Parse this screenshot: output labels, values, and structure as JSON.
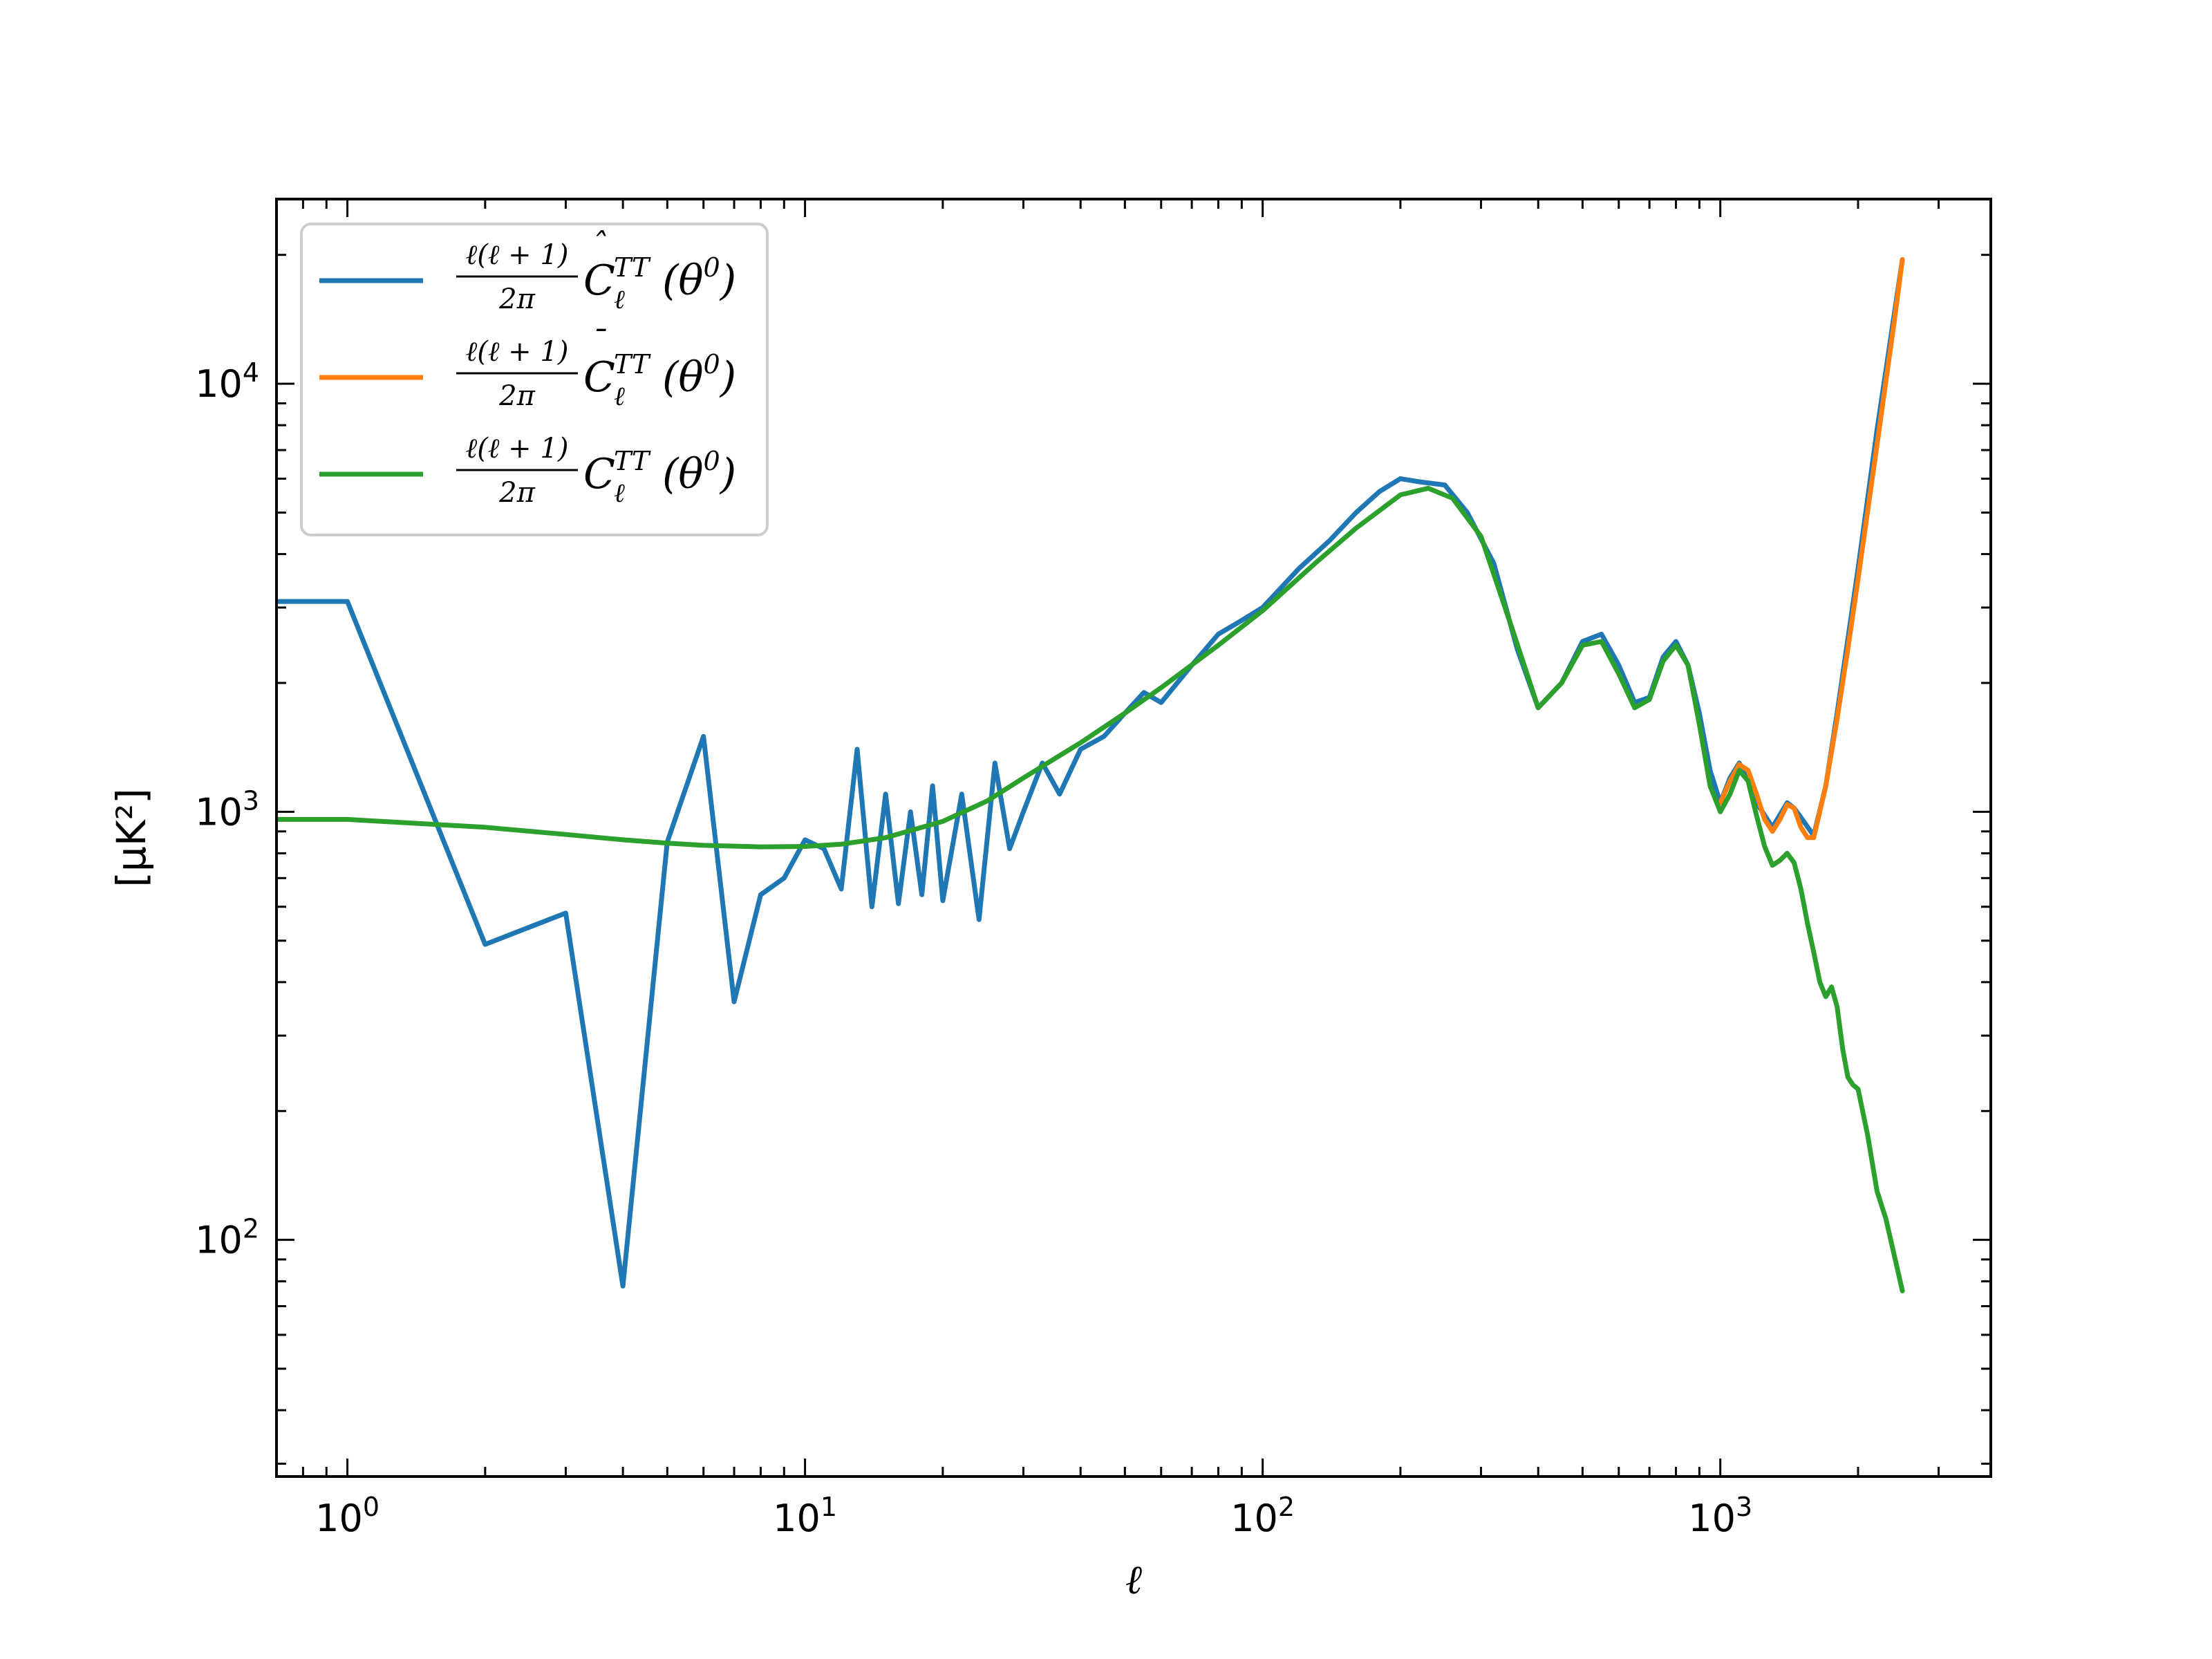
{
  "chart_data": {
    "type": "line",
    "title": "",
    "xlabel": "ℓ",
    "ylabel": "[μK²]",
    "xscale": "log",
    "yscale": "log",
    "xlim": [
      0.7,
      3900
    ],
    "ylim": [
      28,
      27000
    ],
    "grid": false,
    "legend_position": "top-left",
    "x_ticks": [
      {
        "value": 1,
        "base": "10",
        "exp": "0"
      },
      {
        "value": 10,
        "base": "10",
        "exp": "1"
      },
      {
        "value": 100,
        "base": "10",
        "exp": "2"
      },
      {
        "value": 1000,
        "base": "10",
        "exp": "3"
      }
    ],
    "y_ticks": [
      {
        "value": 100,
        "base": "10",
        "exp": "2"
      },
      {
        "value": 1000,
        "base": "10",
        "exp": "3"
      },
      {
        "value": 10000,
        "base": "10",
        "exp": "4"
      }
    ],
    "series": [
      {
        "name": "ℓ(ℓ+1)/2π Ĉ_ℓ^TT(θ⁰)",
        "legend": {
          "num": "ℓ(ℓ + 1)",
          "den": "2π",
          "sym": "C",
          "accent": "ˆ",
          "sub": "ℓ",
          "sup": "TT",
          "arg": "(θ",
          "argsup": "0",
          "argclose": ")"
        },
        "color": "#1f77b4",
        "x": [
          0.7,
          1,
          2,
          3,
          4,
          5,
          6,
          7,
          8,
          9,
          10,
          11,
          12,
          13,
          14,
          15,
          16,
          17,
          18,
          19,
          20,
          22,
          24,
          26,
          28,
          30,
          33,
          36,
          40,
          45,
          50,
          55,
          60,
          70,
          80,
          90,
          100,
          120,
          140,
          160,
          180,
          200,
          220,
          250,
          280,
          320,
          360,
          400,
          450,
          500,
          550,
          600,
          650,
          700,
          750,
          800,
          850,
          900,
          950,
          1000,
          1050,
          1100,
          1150,
          1200,
          1300,
          1400,
          1450,
          1500,
          1600,
          1700,
          1800,
          2000,
          2200,
          2500
        ],
        "y": [
          3100,
          3100,
          490,
          580,
          78,
          850,
          1500,
          360,
          640,
          700,
          860,
          820,
          660,
          1400,
          600,
          1100,
          610,
          1000,
          640,
          1150,
          620,
          1100,
          560,
          1300,
          820,
          1000,
          1300,
          1100,
          1400,
          1500,
          1700,
          1900,
          1800,
          2200,
          2600,
          2800,
          3000,
          3700,
          4300,
          5000,
          5600,
          6000,
          5900,
          5800,
          5000,
          3800,
          2400,
          1750,
          2000,
          2500,
          2600,
          2200,
          1800,
          1850,
          2300,
          2500,
          2200,
          1700,
          1250,
          1050,
          1200,
          1300,
          1200,
          1050,
          920,
          1050,
          1020,
          970,
          880,
          1150,
          1700,
          3700,
          7800,
          19500
        ]
      },
      {
        "name": "ℓ(ℓ+1)/2π C̄_ℓ^TT(θ⁰)",
        "legend": {
          "num": "ℓ(ℓ + 1)",
          "den": "2π",
          "sym": "C",
          "accent": "¯",
          "sub": "ℓ",
          "sup": "TT",
          "arg": "(θ",
          "argsup": "0",
          "argclose": ")"
        },
        "color": "#ff7f0e",
        "x": [
          1000,
          1050,
          1100,
          1150,
          1200,
          1250,
          1300,
          1350,
          1400,
          1450,
          1500,
          1550,
          1600,
          1700,
          1800,
          1900,
          2000,
          2200,
          2400,
          2500
        ],
        "y": [
          1050,
          1180,
          1290,
          1250,
          1100,
          960,
          900,
          960,
          1040,
          1020,
          920,
          870,
          870,
          1150,
          1650,
          2400,
          3500,
          7200,
          14000,
          19500
        ]
      },
      {
        "name": "ℓ(ℓ+1)/2π C_ℓ^TT(θ⁰)",
        "legend": {
          "num": "ℓ(ℓ + 1)",
          "den": "2π",
          "sym": "C",
          "accent": "",
          "sub": "ℓ",
          "sup": "TT",
          "arg": "(θ",
          "argsup": "0",
          "argclose": ")"
        },
        "color": "#2ca02c",
        "x": [
          0.7,
          1,
          2,
          3,
          4,
          5,
          6,
          8,
          10,
          12,
          15,
          20,
          25,
          30,
          40,
          50,
          60,
          80,
          100,
          130,
          160,
          200,
          230,
          260,
          300,
          350,
          400,
          450,
          500,
          550,
          600,
          650,
          700,
          750,
          800,
          850,
          900,
          950,
          1000,
          1050,
          1100,
          1150,
          1200,
          1250,
          1300,
          1350,
          1400,
          1450,
          1500,
          1550,
          1600,
          1650,
          1700,
          1750,
          1800,
          1850,
          1900,
          1950,
          2000,
          2100,
          2200,
          2300,
          2400,
          2500
        ],
        "y": [
          960,
          960,
          920,
          885,
          860,
          845,
          835,
          828,
          830,
          840,
          870,
          950,
          1060,
          1200,
          1450,
          1700,
          1950,
          2450,
          2950,
          3800,
          4600,
          5500,
          5700,
          5400,
          4400,
          2700,
          1750,
          2000,
          2450,
          2500,
          2100,
          1750,
          1830,
          2250,
          2450,
          2200,
          1600,
          1150,
          1000,
          1100,
          1250,
          1180,
          980,
          830,
          750,
          770,
          800,
          760,
          660,
          550,
          470,
          400,
          370,
          390,
          350,
          280,
          240,
          230,
          225,
          175,
          130,
          112,
          92,
          76
        ]
      }
    ]
  }
}
